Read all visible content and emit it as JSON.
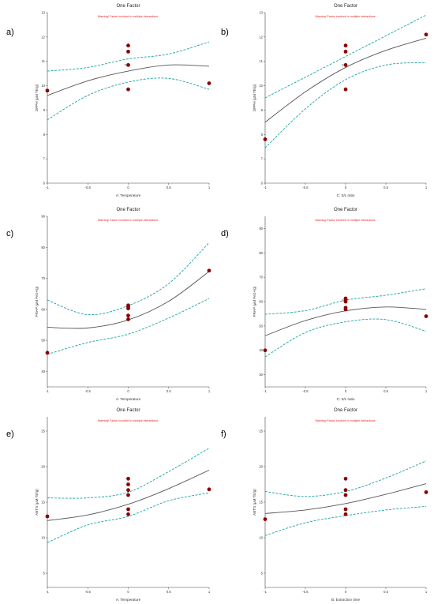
{
  "chart_data": [
    {
      "type": "scatter",
      "panel_label": "a)",
      "title": "One Factor",
      "warning": "Warning! Factor involved in multiple interactions.",
      "xlabel": "A: Temperature",
      "ylabel": "DPPH (μM TE/g)",
      "xlim": [
        -1,
        1
      ],
      "ylim": [
        6,
        13
      ],
      "xticks": [
        -1,
        -0.5,
        0,
        0.5,
        1
      ],
      "xtick_labels": [
        "-1",
        "-0.5",
        "0",
        "0.5",
        "1"
      ],
      "yticks": [
        6,
        7,
        8,
        9,
        10,
        11,
        12,
        13
      ],
      "ytick_labels": [
        "6",
        "7",
        "8",
        "9",
        "10",
        "11",
        "12",
        "13"
      ],
      "points": [
        {
          "x": -1,
          "y": 9.8
        },
        {
          "x": 0,
          "y": 11.65
        },
        {
          "x": 0,
          "y": 11.4
        },
        {
          "x": 0,
          "y": 10.85
        },
        {
          "x": 0,
          "y": 9.85
        },
        {
          "x": 1,
          "y": 10.1
        }
      ],
      "replicate_labels": [
        {
          "x": 0,
          "y": 10.85,
          "text": "2"
        }
      ],
      "fit": [
        [
          -1,
          9.6
        ],
        [
          -0.5,
          10.2
        ],
        [
          0,
          10.6
        ],
        [
          0.5,
          10.85
        ],
        [
          1,
          10.8
        ]
      ],
      "ci_upper": [
        [
          -1,
          10.6
        ],
        [
          -0.5,
          10.75
        ],
        [
          0,
          11.1
        ],
        [
          0.5,
          11.3
        ],
        [
          1,
          11.8
        ]
      ],
      "ci_lower": [
        [
          -1,
          8.6
        ],
        [
          -0.5,
          9.6
        ],
        [
          0,
          10.15
        ],
        [
          0.5,
          10.3
        ],
        [
          1,
          9.85
        ]
      ],
      "colors": {
        "points": "#8b0000",
        "fit": "#555555",
        "ci": "#1aa3a3"
      }
    },
    {
      "type": "scatter",
      "panel_label": "b)",
      "title": "One Factor",
      "warning": "Warning! Factor involved in multiple interactions.",
      "xlabel": "C: S/L ratio",
      "ylabel": "DPPH (μM TE/g)",
      "xlim": [
        -1,
        1
      ],
      "ylim": [
        6,
        13
      ],
      "xticks": [
        -1,
        -0.5,
        0,
        0.5,
        1
      ],
      "xtick_labels": [
        "-1",
        "-0.5",
        "0",
        "0.5",
        "1"
      ],
      "yticks": [
        6,
        7,
        8,
        9,
        10,
        11,
        12,
        13
      ],
      "ytick_labels": [
        "6",
        "7",
        "8",
        "9",
        "10",
        "11",
        "12",
        "13"
      ],
      "points": [
        {
          "x": -1,
          "y": 7.8
        },
        {
          "x": 0,
          "y": 11.65
        },
        {
          "x": 0,
          "y": 11.4
        },
        {
          "x": 0,
          "y": 10.85
        },
        {
          "x": 0,
          "y": 9.85
        },
        {
          "x": 1,
          "y": 12.1
        }
      ],
      "replicate_labels": [
        {
          "x": 0,
          "y": 10.85,
          "text": "2"
        }
      ],
      "fit": [
        [
          -1,
          8.5
        ],
        [
          -0.5,
          9.75
        ],
        [
          0,
          10.75
        ],
        [
          0.5,
          11.45
        ],
        [
          1,
          11.95
        ]
      ],
      "ci_upper": [
        [
          -1,
          9.5
        ],
        [
          -0.5,
          10.35
        ],
        [
          0,
          11.2
        ],
        [
          0.5,
          12.05
        ],
        [
          1,
          12.9
        ]
      ],
      "ci_lower": [
        [
          -1,
          7.45
        ],
        [
          -0.5,
          9.05
        ],
        [
          0,
          10.25
        ],
        [
          0.5,
          10.85
        ],
        [
          1,
          10.95
        ]
      ],
      "colors": {
        "points": "#8b0000",
        "fit": "#555555",
        "ci": "#1aa3a3"
      }
    },
    {
      "type": "scatter",
      "panel_label": "c)",
      "title": "One Factor",
      "warning": "Warning! Factor involved in multiple interactions.",
      "xlabel": "A: Temperature",
      "ylabel": "FRAP (μM Fe2+/g)",
      "xlim": [
        -1,
        1
      ],
      "ylim": [
        35,
        90
      ],
      "xticks": [
        -1,
        -0.5,
        0,
        0.5,
        1
      ],
      "xtick_labels": [
        "-1",
        "-0.5",
        "0",
        "0.5",
        "1"
      ],
      "yticks": [
        40,
        50,
        60,
        70,
        80,
        90
      ],
      "ytick_labels": [
        "40",
        "50",
        "60",
        "70",
        "80",
        "90"
      ],
      "points": [
        {
          "x": -1,
          "y": 46
        },
        {
          "x": 0,
          "y": 61.3
        },
        {
          "x": 0,
          "y": 60.8
        },
        {
          "x": 0,
          "y": 60.3
        },
        {
          "x": 0,
          "y": 58
        },
        {
          "x": 0,
          "y": 56.8
        },
        {
          "x": 1,
          "y": 72.5
        }
      ],
      "replicate_labels": [],
      "fit": [
        [
          -1,
          54.2
        ],
        [
          -0.5,
          54
        ],
        [
          0,
          56.6
        ],
        [
          0.5,
          62.6
        ],
        [
          1,
          72.2
        ]
      ],
      "ci_upper": [
        [
          -1,
          63
        ],
        [
          -0.5,
          58.3
        ],
        [
          0,
          61.2
        ],
        [
          0.5,
          68.3
        ],
        [
          1,
          81.5
        ]
      ],
      "ci_lower": [
        [
          -1,
          45.5
        ],
        [
          -0.5,
          49.3
        ],
        [
          0,
          52
        ],
        [
          0.5,
          57.2
        ],
        [
          1,
          63.5
        ]
      ],
      "colors": {
        "points": "#8b0000",
        "fit": "#555555",
        "ci": "#1aa3a3"
      }
    },
    {
      "type": "scatter",
      "panel_label": "d)",
      "title": "One Factor",
      "warning": "Warning! Factor involved in multiple interactions.",
      "xlabel": "C: S/L ratio",
      "ylabel": "FRAP (μM Fe2+/g)",
      "xlim": [
        -1,
        1
      ],
      "ylim": [
        25,
        95
      ],
      "xticks": [
        -1,
        -0.5,
        0,
        0.5,
        1
      ],
      "xtick_labels": [
        "-1",
        "-0.5",
        "0",
        "0.5",
        "1"
      ],
      "yticks": [
        30,
        40,
        50,
        60,
        70,
        80,
        90
      ],
      "ytick_labels": [
        "30",
        "40",
        "50",
        "60",
        "70",
        "80",
        "90"
      ],
      "points": [
        {
          "x": -1,
          "y": 40
        },
        {
          "x": 0,
          "y": 61.3
        },
        {
          "x": 0,
          "y": 60.6
        },
        {
          "x": 0,
          "y": 60
        },
        {
          "x": 0,
          "y": 57.5
        },
        {
          "x": 0,
          "y": 56.8
        },
        {
          "x": 1,
          "y": 54
        }
      ],
      "replicate_labels": [
        {
          "x": 0,
          "y": 60.6,
          "text": "2"
        }
      ],
      "fit": [
        [
          -1,
          46
        ],
        [
          -0.5,
          52.2
        ],
        [
          0,
          56.2
        ],
        [
          0.5,
          57.8
        ],
        [
          1,
          56.8
        ]
      ],
      "ci_upper": [
        [
          -1,
          54.8
        ],
        [
          -0.5,
          56.3
        ],
        [
          0,
          60.6
        ],
        [
          0.5,
          62.6
        ],
        [
          1,
          65.3
        ]
      ],
      "ci_lower": [
        [
          -1,
          37.3
        ],
        [
          -0.5,
          47.3
        ],
        [
          0,
          51.7
        ],
        [
          0.5,
          52.6
        ],
        [
          1,
          47.8
        ]
      ],
      "colors": {
        "points": "#8b0000",
        "fit": "#555555",
        "ci": "#1aa3a3"
      }
    },
    {
      "type": "scatter",
      "panel_label": "e)",
      "title": "One Factor",
      "warning": "Warning! Factor involved in multiple interactions.",
      "xlabel": "A: Temperature",
      "ylabel": "ABTS (μM TE/g)",
      "xlim": [
        -1,
        1
      ],
      "ylim": [
        3,
        27
      ],
      "xticks": [
        -1,
        -0.5,
        0,
        0.5,
        1
      ],
      "xtick_labels": [
        "-1",
        "-0.5",
        "0",
        "0.5",
        "1"
      ],
      "yticks": [
        5,
        10,
        15,
        20,
        25
      ],
      "ytick_labels": [
        "5",
        "10",
        "15",
        "20",
        "25"
      ],
      "points": [
        {
          "x": -1,
          "y": 13
        },
        {
          "x": 0,
          "y": 18.3
        },
        {
          "x": 0,
          "y": 17.5
        },
        {
          "x": 0,
          "y": 16.7
        },
        {
          "x": 0,
          "y": 16
        },
        {
          "x": 0,
          "y": 14
        },
        {
          "x": 0,
          "y": 13.3
        },
        {
          "x": 1,
          "y": 16.8
        }
      ],
      "replicate_labels": [],
      "fit": [
        [
          -1,
          12.4
        ],
        [
          -0.5,
          13.2
        ],
        [
          0,
          14.7
        ],
        [
          0.5,
          16.9
        ],
        [
          1,
          19.5
        ]
      ],
      "ci_upper": [
        [
          -1,
          15.6
        ],
        [
          -0.5,
          15.6
        ],
        [
          0,
          16.4
        ],
        [
          0.5,
          19.3
        ],
        [
          1,
          22.6
        ]
      ],
      "ci_lower": [
        [
          -1,
          9.3
        ],
        [
          -0.5,
          11.8
        ],
        [
          0,
          13
        ],
        [
          0.5,
          15.2
        ],
        [
          1,
          16.3
        ]
      ],
      "colors": {
        "points": "#8b0000",
        "fit": "#555555",
        "ci": "#1aa3a3"
      }
    },
    {
      "type": "scatter",
      "panel_label": "f)",
      "title": "One Factor",
      "warning": "Warning! Factor involved in multiple interactions.",
      "xlabel": "B: Extraction time",
      "ylabel": "ABTS (μM TE/g)",
      "xlim": [
        -1,
        1
      ],
      "ylim": [
        3,
        27
      ],
      "xticks": [
        -1,
        -0.5,
        0,
        0.5,
        1
      ],
      "xtick_labels": [
        "-1",
        "-0.5",
        "0",
        "0.5",
        "1"
      ],
      "yticks": [
        5,
        10,
        15,
        20,
        25
      ],
      "ytick_labels": [
        "5",
        "10",
        "15",
        "20",
        "25"
      ],
      "points": [
        {
          "x": -1,
          "y": 12.6
        },
        {
          "x": 0,
          "y": 18.3
        },
        {
          "x": 0,
          "y": 16.7
        },
        {
          "x": 0,
          "y": 16
        },
        {
          "x": 0,
          "y": 14
        },
        {
          "x": 0,
          "y": 13.3
        },
        {
          "x": 1,
          "y": 16.4
        }
      ],
      "replicate_labels": [],
      "fit": [
        [
          -1,
          13.4
        ],
        [
          -0.5,
          13.9
        ],
        [
          0,
          14.8
        ],
        [
          0.5,
          16.1
        ],
        [
          1,
          17.6
        ]
      ],
      "ci_upper": [
        [
          -1,
          16.5
        ],
        [
          -0.5,
          15.8
        ],
        [
          0,
          16.5
        ],
        [
          0.5,
          18.4
        ],
        [
          1,
          20.8
        ]
      ],
      "ci_lower": [
        [
          -1,
          10.3
        ],
        [
          -0.5,
          12.1
        ],
        [
          0,
          13.1
        ],
        [
          0.5,
          13.9
        ],
        [
          1,
          14.4
        ]
      ],
      "colors": {
        "points": "#8b0000",
        "fit": "#555555",
        "ci": "#1aa3a3"
      }
    }
  ]
}
